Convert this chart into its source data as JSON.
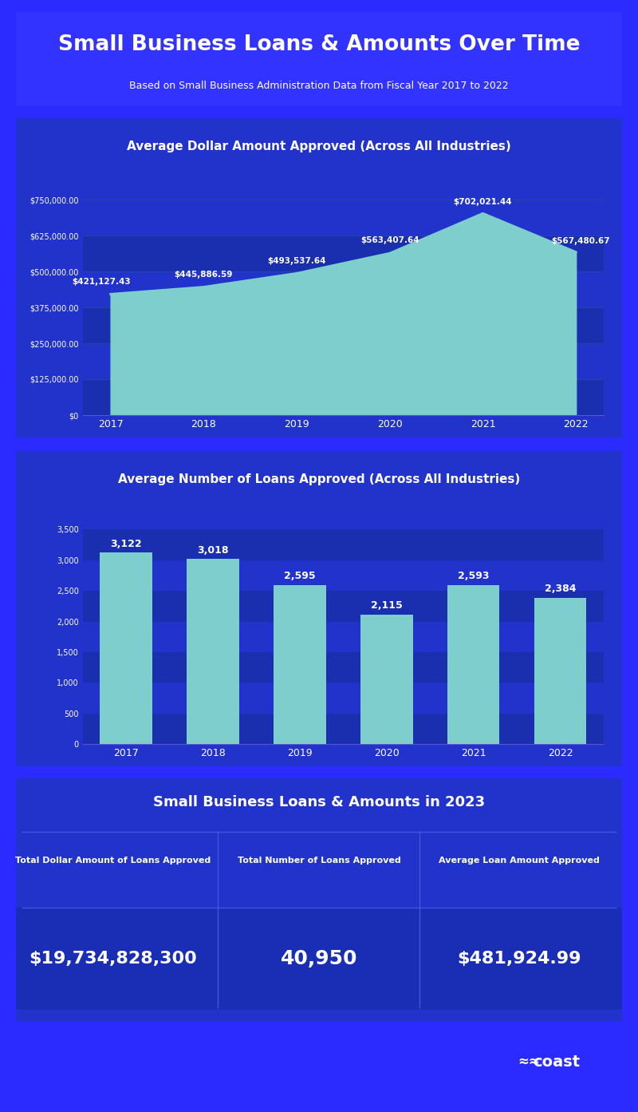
{
  "title": "Small Business Loans & Amounts Over Time",
  "subtitle": "Based on Small Business Administration Data from Fiscal Year 2017 to 2022",
  "bg_outer": "#2b2bff",
  "bg_panel": "#2020cc",
  "bg_chart": "#2233bb",
  "area_color": "#7ecece",
  "bar_color": "#7ecece",
  "text_color": "#ffffff",
  "years": [
    "2017",
    "2018",
    "2019",
    "2020",
    "2021",
    "2022"
  ],
  "avg_dollar": [
    421127.43,
    445886.59,
    493537.64,
    563407.64,
    702021.44,
    567480.67
  ],
  "avg_loans": [
    3122,
    3018,
    2595,
    2115,
    2593,
    2384
  ],
  "chart1_title": "Average Dollar Amount Approved (Across All Industries)",
  "chart2_title": "Average Number of Loans Approved (Across All Industries)",
  "chart1_yticks": [
    0,
    125000,
    250000,
    375000,
    500000,
    625000,
    750000
  ],
  "chart1_ytick_labels": [
    "$0",
    "$125,000.00",
    "$250,000.00",
    "$375,000.00",
    "$500,000.00",
    "$625,000.00",
    "$750,000.00"
  ],
  "chart2_yticks": [
    0,
    500,
    1000,
    1500,
    2000,
    2500,
    3000,
    3500
  ],
  "chart2_ytick_labels": [
    "0",
    "500",
    "1,000",
    "1,500",
    "2,000",
    "2,500",
    "3,000",
    "3,500"
  ],
  "section2023_title": "Small Business Loans & Amounts in 2023",
  "col1_label": "Total Dollar Amount of Loans Approved",
  "col2_label": "Total Number of Loans Approved",
  "col3_label": "Average Loan Amount Approved",
  "col1_value": "$19,734,828,300",
  "col2_value": "40,950",
  "col3_value": "$481,924.99",
  "footer_logo": "coast"
}
